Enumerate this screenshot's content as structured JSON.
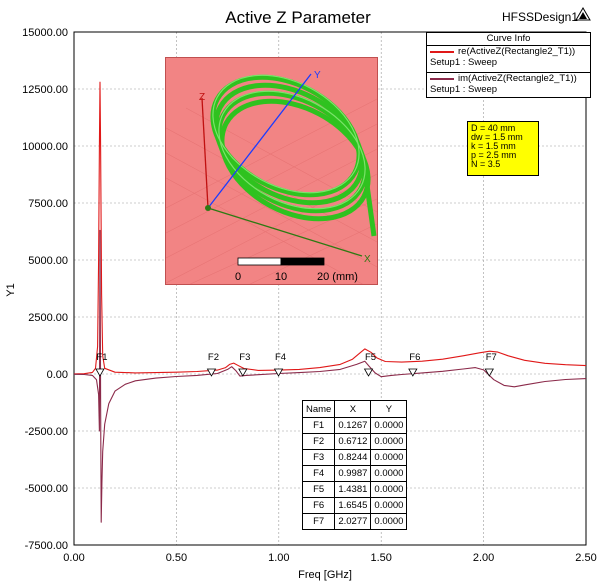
{
  "header": {
    "title": "Active Z Parameter",
    "design": "HFSSDesign1"
  },
  "legend": {
    "title": "Curve Info",
    "entries": [
      {
        "line1": "re(ActiveZ(Rectangle2_T1))",
        "line2": "Setup1 : Sweep",
        "color": "#e01818"
      },
      {
        "line1": "im(ActiveZ(Rectangle2_T1))",
        "line2": "Setup1 : Sweep",
        "color": "#8b2a4a"
      }
    ]
  },
  "params": [
    "D = 40 mm",
    "dw = 1.5 mm",
    "k = 1.5 mm",
    "p = 2.5 mm",
    "N = 3.5"
  ],
  "inset": {
    "axes": {
      "x": "X",
      "y": "Y",
      "z": "Z"
    },
    "scale_labels": [
      "0",
      "10",
      "20 (mm)"
    ]
  },
  "markers_table": {
    "headers": [
      "Name",
      "X",
      "Y"
    ],
    "rows": [
      [
        "F1",
        "0.1267",
        "0.0000"
      ],
      [
        "F2",
        "0.6712",
        "0.0000"
      ],
      [
        "F3",
        "0.8244",
        "0.0000"
      ],
      [
        "F4",
        "0.9987",
        "0.0000"
      ],
      [
        "F5",
        "1.4381",
        "0.0000"
      ],
      [
        "F6",
        "1.6545",
        "0.0000"
      ],
      [
        "F7",
        "2.0277",
        "0.0000"
      ]
    ]
  },
  "chart_data": {
    "type": "line",
    "title": "Active Z Parameter",
    "xlabel": "Freq [GHz]",
    "ylabel": "Y1",
    "xlim": [
      0,
      2.5
    ],
    "ylim": [
      -7500,
      15000
    ],
    "x_ticks": [
      "0.00",
      "0.50",
      "1.00",
      "1.50",
      "2.00",
      "2.50"
    ],
    "y_ticks": [
      "15000.00",
      "12500.00",
      "10000.00",
      "7500.00",
      "5000.00",
      "2500.00",
      "0.00",
      "-2500.00",
      "-5000.00",
      "-7500.00"
    ],
    "grid": true,
    "series": [
      {
        "name": "re(ActiveZ(Rectangle2_T1))",
        "color": "#e01818",
        "points": [
          [
            0.0,
            5
          ],
          [
            0.05,
            15
          ],
          [
            0.09,
            70
          ],
          [
            0.105,
            250
          ],
          [
            0.115,
            1200
          ],
          [
            0.12,
            5000
          ],
          [
            0.124,
            10000
          ],
          [
            0.127,
            12800
          ],
          [
            0.13,
            10000
          ],
          [
            0.135,
            3500
          ],
          [
            0.14,
            800
          ],
          [
            0.15,
            250
          ],
          [
            0.2,
            80
          ],
          [
            0.3,
            50
          ],
          [
            0.4,
            60
          ],
          [
            0.5,
            80
          ],
          [
            0.6,
            110
          ],
          [
            0.7,
            170
          ],
          [
            0.74,
            280
          ],
          [
            0.76,
            420
          ],
          [
            0.78,
            480
          ],
          [
            0.8,
            380
          ],
          [
            0.83,
            240
          ],
          [
            0.9,
            160
          ],
          [
            1.0,
            170
          ],
          [
            1.1,
            200
          ],
          [
            1.2,
            280
          ],
          [
            1.3,
            420
          ],
          [
            1.36,
            650
          ],
          [
            1.4,
            950
          ],
          [
            1.42,
            1100
          ],
          [
            1.45,
            950
          ],
          [
            1.48,
            700
          ],
          [
            1.52,
            550
          ],
          [
            1.6,
            520
          ],
          [
            1.7,
            560
          ],
          [
            1.8,
            650
          ],
          [
            1.9,
            800
          ],
          [
            1.98,
            930
          ],
          [
            2.03,
            1000
          ],
          [
            2.07,
            960
          ],
          [
            2.12,
            800
          ],
          [
            2.2,
            600
          ],
          [
            2.3,
            470
          ],
          [
            2.4,
            410
          ],
          [
            2.5,
            370
          ]
        ]
      },
      {
        "name": "im(ActiveZ(Rectangle2_T1))",
        "color": "#8b2a4a",
        "points": [
          [
            0.0,
            -15
          ],
          [
            0.05,
            -20
          ],
          [
            0.09,
            -60
          ],
          [
            0.11,
            -250
          ],
          [
            0.12,
            -900
          ],
          [
            0.124,
            -2500
          ],
          [
            0.127,
            6300
          ],
          [
            0.13,
            -1000
          ],
          [
            0.133,
            -6500
          ],
          [
            0.136,
            -4800
          ],
          [
            0.14,
            -3400
          ],
          [
            0.15,
            -2200
          ],
          [
            0.17,
            -1300
          ],
          [
            0.2,
            -750
          ],
          [
            0.25,
            -450
          ],
          [
            0.3,
            -300
          ],
          [
            0.4,
            -180
          ],
          [
            0.5,
            -110
          ],
          [
            0.6,
            -60
          ],
          [
            0.7,
            20
          ],
          [
            0.75,
            200
          ],
          [
            0.77,
            320
          ],
          [
            0.79,
            150
          ],
          [
            0.81,
            -90
          ],
          [
            0.84,
            -60
          ],
          [
            0.9,
            -30
          ],
          [
            1.0,
            20
          ],
          [
            1.1,
            60
          ],
          [
            1.2,
            110
          ],
          [
            1.3,
            200
          ],
          [
            1.38,
            420
          ],
          [
            1.42,
            560
          ],
          [
            1.44,
            350
          ],
          [
            1.47,
            50
          ],
          [
            1.5,
            -120
          ],
          [
            1.55,
            -60
          ],
          [
            1.6,
            -20
          ],
          [
            1.7,
            50
          ],
          [
            1.8,
            120
          ],
          [
            1.9,
            220
          ],
          [
            1.96,
            280
          ],
          [
            2.0,
            180
          ],
          [
            2.05,
            -250
          ],
          [
            2.1,
            -500
          ],
          [
            2.15,
            -560
          ],
          [
            2.2,
            -480
          ],
          [
            2.3,
            -330
          ],
          [
            2.4,
            -240
          ],
          [
            2.5,
            -200
          ]
        ]
      }
    ],
    "markers": [
      {
        "name": "F1",
        "x": 0.1267
      },
      {
        "name": "F2",
        "x": 0.6712
      },
      {
        "name": "F3",
        "x": 0.8244
      },
      {
        "name": "F4",
        "x": 0.9987
      },
      {
        "name": "F5",
        "x": 1.4381
      },
      {
        "name": "F6",
        "x": 1.6545
      },
      {
        "name": "F7",
        "x": 2.0277
      }
    ]
  }
}
